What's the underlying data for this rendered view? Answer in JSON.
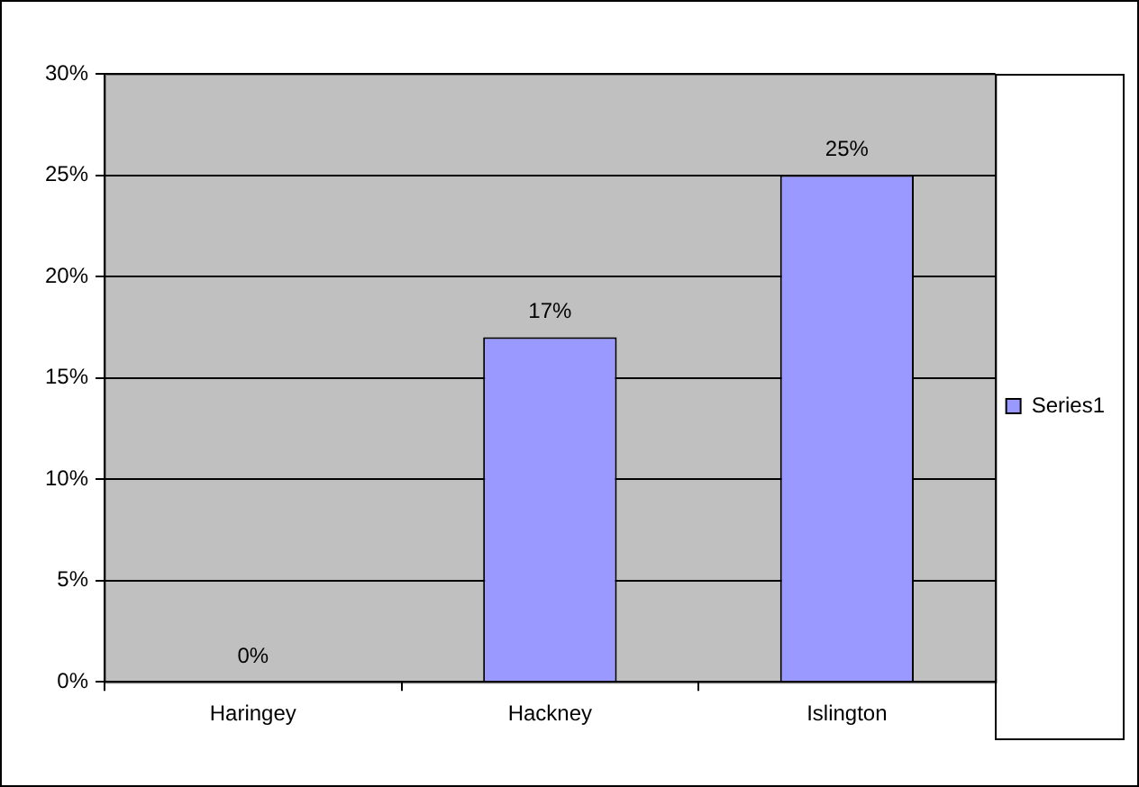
{
  "chart_data": {
    "type": "bar",
    "categories": [
      "Haringey",
      "Hackney",
      "Islington"
    ],
    "series": [
      {
        "name": "Series1",
        "color": "#9999ff",
        "values": [
          0,
          17,
          25
        ],
        "value_labels": [
          "0%",
          "17%",
          "25%"
        ]
      }
    ],
    "ylim": [
      0,
      30
    ],
    "yticks": [
      {
        "value": 0,
        "label": "0%"
      },
      {
        "value": 5,
        "label": "5%"
      },
      {
        "value": 10,
        "label": "10%"
      },
      {
        "value": 15,
        "label": "15%"
      },
      {
        "value": 20,
        "label": "20%"
      },
      {
        "value": 25,
        "label": "25%"
      },
      {
        "value": 30,
        "label": "30%"
      }
    ],
    "grid": "y",
    "legend": "right"
  }
}
